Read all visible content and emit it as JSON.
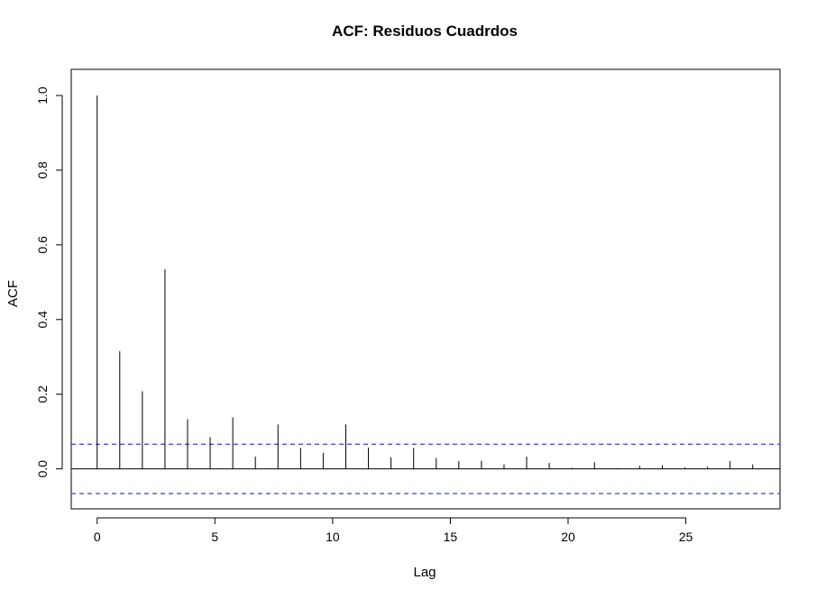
{
  "chart_data": {
    "type": "bar",
    "title": "ACF: Residuos Cuadrdos",
    "xlabel": "Lag",
    "ylabel": "ACF",
    "xlim": [
      -1.1,
      29.0
    ],
    "ylim": [
      -0.107,
      1.07
    ],
    "x_ticks": [
      0,
      5,
      10,
      15,
      20,
      25
    ],
    "x_tick_labels": [
      "0",
      "5",
      "10",
      "15",
      "20",
      "25"
    ],
    "y_ticks": [
      0.0,
      0.2,
      0.4,
      0.6,
      0.8,
      1.0
    ],
    "y_tick_labels": [
      "0.0",
      "0.2",
      "0.4",
      "0.6",
      "0.8",
      "1.0"
    ],
    "lags": [
      0,
      0.96,
      1.92,
      2.88,
      3.84,
      4.8,
      5.76,
      6.72,
      7.68,
      8.64,
      9.6,
      10.56,
      11.52,
      12.48,
      13.44,
      14.4,
      15.36,
      16.32,
      17.28,
      18.24,
      19.2,
      20.16,
      21.12,
      22.08,
      23.04,
      24.0,
      24.96,
      25.92,
      26.88,
      27.84
    ],
    "values": [
      1.0,
      0.315,
      0.208,
      0.535,
      0.133,
      0.085,
      0.138,
      0.033,
      0.119,
      0.056,
      0.043,
      0.119,
      0.057,
      0.031,
      0.056,
      0.029,
      0.021,
      0.022,
      0.012,
      0.033,
      0.016,
      0.003,
      0.018,
      0.002,
      0.008,
      0.01,
      0.004,
      0.006,
      0.021,
      0.012
    ],
    "confidence_bounds": [
      0.066,
      -0.066
    ],
    "colors": {
      "bars": "#000000",
      "ci_line": "#3b3bea",
      "zero_line": "#000000"
    },
    "grid": false
  }
}
